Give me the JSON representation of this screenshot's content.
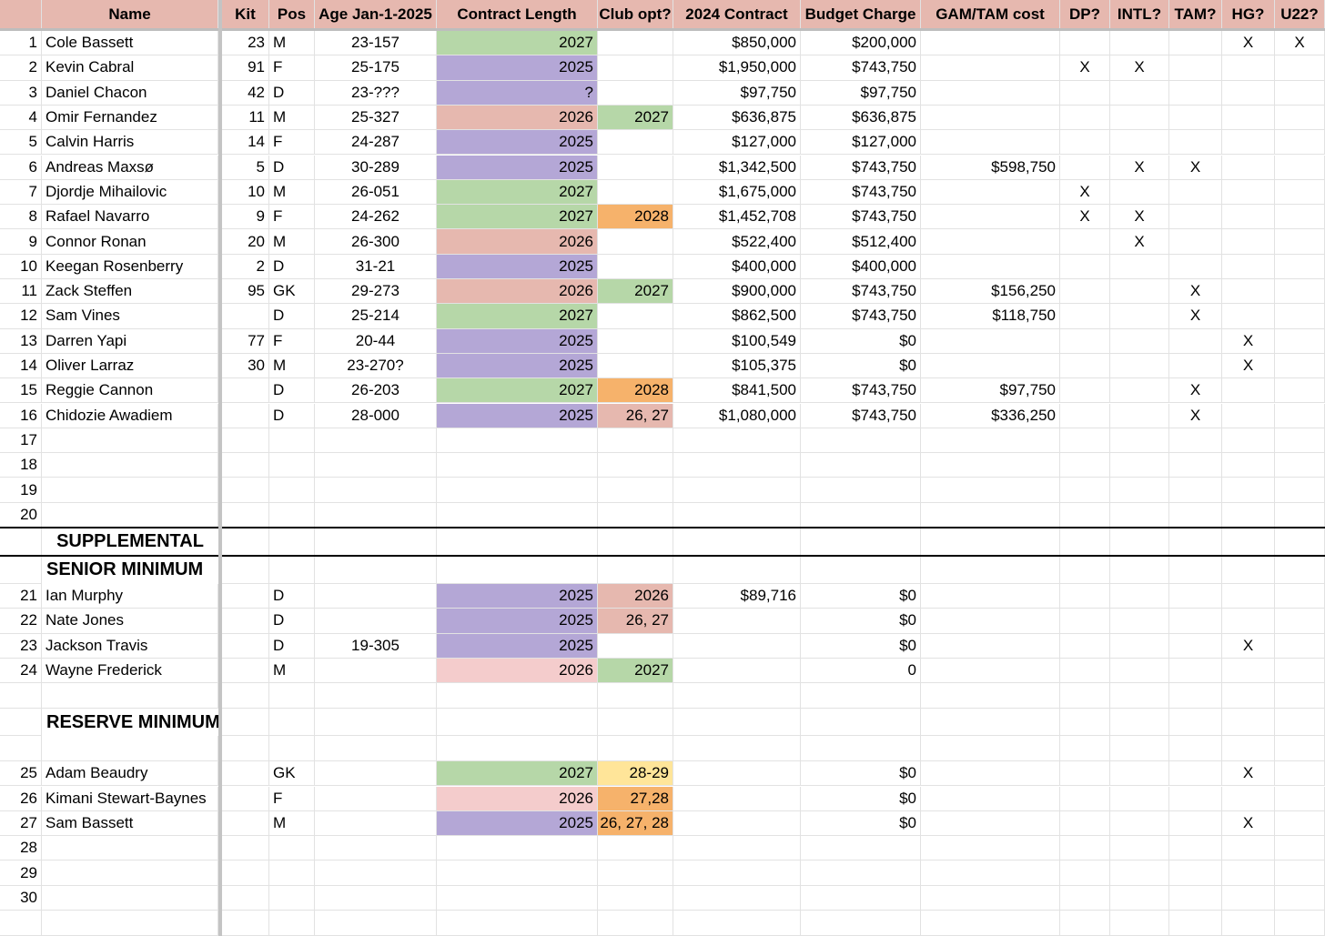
{
  "header": [
    "Name",
    "Kit",
    "Pos",
    "Age Jan-1-2025",
    "Contract Length",
    "Club opt?",
    "2024 Contract",
    "Budget Charge",
    "GAM/TAM cost",
    "DP?",
    "INTL?",
    "TAM?",
    "HG?",
    "U22?"
  ],
  "header_fill": "#e6b8af",
  "rows": [
    {
      "num": 1,
      "name": "Cole Bassett",
      "kit": 23,
      "pos": "M",
      "age": "23-157",
      "contract": 2027,
      "contract_fill": "#b6d7a8",
      "contract_2024": "$850,000",
      "budget": "$200,000",
      "hg": "X",
      "u22": "X"
    },
    {
      "num": 2,
      "name": "Kevin Cabral",
      "kit": 91,
      "pos": "F",
      "age": "25-175",
      "contract": 2025,
      "contract_fill": "#b4a7d6",
      "contract_2024": "$1,950,000",
      "budget": "$743,750",
      "dp": "X",
      "intl": "X"
    },
    {
      "num": 3,
      "name": "Daniel Chacon",
      "kit": 42,
      "pos": "D",
      "age": "23-???",
      "contract": "?",
      "contract_fill": "#b4a7d6",
      "contract_2024": "$97,750",
      "budget": "$97,750"
    },
    {
      "num": 4,
      "name": "Omir Fernandez",
      "kit": 11,
      "pos": "M",
      "age": "25-327",
      "contract": 2026,
      "contract_fill": "#e6b8af",
      "option": 2027,
      "option_fill": "#b6d7a8",
      "contract_2024": "$636,875",
      "budget": "$636,875"
    },
    {
      "num": 5,
      "name": "Calvin Harris",
      "kit": 14,
      "pos": "F",
      "age": "24-287",
      "contract": 2025,
      "contract_fill": "#b4a7d6",
      "contract_2024": "$127,000",
      "budget": "$127,000"
    },
    {
      "num": 6,
      "name": "Andreas Maxsø",
      "kit": 5,
      "pos": "D",
      "age": "30-289",
      "contract": 2025,
      "contract_fill": "#b4a7d6",
      "contract_2024": "$1,342,500",
      "budget": "$743,750",
      "gam_tam": "$598,750",
      "intl": "X",
      "tam": "X"
    },
    {
      "num": 7,
      "name": "Djordje Mihailovic",
      "kit": 10,
      "pos": "M",
      "age": "26-051",
      "contract": 2027,
      "contract_fill": "#b6d7a8",
      "contract_2024": "$1,675,000",
      "budget": "$743,750",
      "dp": "X"
    },
    {
      "num": 8,
      "name": "Rafael Navarro",
      "kit": 9,
      "pos": "F",
      "age": "24-262",
      "contract": 2027,
      "contract_fill": "#b6d7a8",
      "option": 2028,
      "option_fill": "#f6b26b",
      "contract_2024": "$1,452,708",
      "budget": "$743,750",
      "dp": "X",
      "intl": "X"
    },
    {
      "num": 9,
      "name": "Connor Ronan",
      "kit": 20,
      "pos": "M",
      "age": "26-300",
      "contract": 2026,
      "contract_fill": "#e6b8af",
      "contract_2024": "$522,400",
      "budget": "$512,400",
      "intl": "X"
    },
    {
      "num": 10,
      "name": "Keegan Rosenberry",
      "kit": 2,
      "pos": "D",
      "age": "31-21",
      "contract": 2025,
      "contract_fill": "#b4a7d6",
      "contract_2024": "$400,000",
      "budget": "$400,000"
    },
    {
      "num": 11,
      "name": "Zack Steffen",
      "kit": 95,
      "pos": "GK",
      "age": "29-273",
      "contract": 2026,
      "contract_fill": "#e6b8af",
      "option": 2027,
      "option_fill": "#b6d7a8",
      "contract_2024": "$900,000",
      "budget": "$743,750",
      "gam_tam": "$156,250",
      "tam": "X"
    },
    {
      "num": 12,
      "name": "Sam Vines",
      "pos": "D",
      "age": "25-214",
      "contract": 2027,
      "contract_fill": "#b6d7a8",
      "contract_2024": "$862,500",
      "budget": "$743,750",
      "gam_tam": "$118,750",
      "tam": "X"
    },
    {
      "num": 13,
      "name": "Darren Yapi",
      "kit": 77,
      "pos": "F",
      "age": "20-44",
      "contract": 2025,
      "contract_fill": "#b4a7d6",
      "contract_2024": "$100,549",
      "budget": "$0",
      "hg": "X"
    },
    {
      "num": 14,
      "name": "Oliver Larraz",
      "kit": 30,
      "pos": "M",
      "age": "23-270?",
      "contract": 2025,
      "contract_fill": "#b4a7d6",
      "contract_2024": "$105,375",
      "budget": "$0",
      "hg": "X"
    },
    {
      "num": 15,
      "name": "Reggie Cannon",
      "pos": "D",
      "age": "26-203",
      "contract": 2027,
      "contract_fill": "#b6d7a8",
      "option": 2028,
      "option_fill": "#f6b26b",
      "contract_2024": "$841,500",
      "budget": "$743,750",
      "gam_tam": "$97,750",
      "tam": "X"
    },
    {
      "num": 16,
      "name": "Chidozie Awadiem",
      "pos": "D",
      "age": "28-000",
      "contract": 2025,
      "contract_fill": "#b4a7d6",
      "option": "26, 27",
      "option_fill": "#e6b8af",
      "contract_2024": "$1,080,000",
      "budget": "$743,750",
      "gam_tam": "$336,250",
      "tam": "X"
    },
    {
      "num": 17
    },
    {
      "num": 18
    },
    {
      "num": 19
    },
    {
      "num": 20
    },
    {
      "section": "SUPPLEMENTAL"
    },
    {
      "section": "SENIOR MINIMUM"
    },
    {
      "num": 21,
      "name": "Ian Murphy",
      "pos": "D",
      "contract": 2025,
      "contract_fill": "#b4a7d6",
      "option": 2026,
      "option_fill": "#e6b8af",
      "contract_2024": "$89,716",
      "budget": "$0"
    },
    {
      "num": 22,
      "name": "Nate Jones",
      "pos": "D",
      "contract": 2025,
      "contract_fill": "#b4a7d6",
      "option": "26, 27",
      "option_fill": "#e6b8af",
      "budget": "$0"
    },
    {
      "num": 23,
      "name": "Jackson Travis",
      "pos": "D",
      "age": "19-305",
      "contract": 2025,
      "contract_fill": "#b4a7d6",
      "budget": "$0",
      "hg": "X"
    },
    {
      "num": 24,
      "name": "Wayne Frederick",
      "pos": "M",
      "contract": 2026,
      "contract_fill": "#f4cccc",
      "option": 2027,
      "option_fill": "#b6d7a8",
      "budget": 0
    },
    null,
    {
      "section": "RESERVE MINIMUM"
    },
    null,
    {
      "num": 25,
      "name": "Adam Beaudry",
      "pos": "GK",
      "contract": 2027,
      "contract_fill": "#b6d7a8",
      "option": "28-29",
      "option_fill": "#ffe599",
      "budget": "$0",
      "hg": "X"
    },
    {
      "num": 26,
      "name": "Kimani Stewart-Baynes",
      "pos": "F",
      "contract": 2026,
      "contract_fill": "#f4cccc",
      "option": "27,28",
      "option_fill": "#f6b26b",
      "budget": "$0"
    },
    {
      "num": 27,
      "name": "Sam Bassett",
      "pos": "M",
      "contract": 2025,
      "contract_fill": "#b4a7d6",
      "option": "26, 27, 28",
      "option_fill": "#f6b26b",
      "budget": "$0",
      "hg": "X"
    },
    {
      "num": 28
    },
    {
      "num": 29
    },
    {
      "num": 30
    },
    null
  ]
}
